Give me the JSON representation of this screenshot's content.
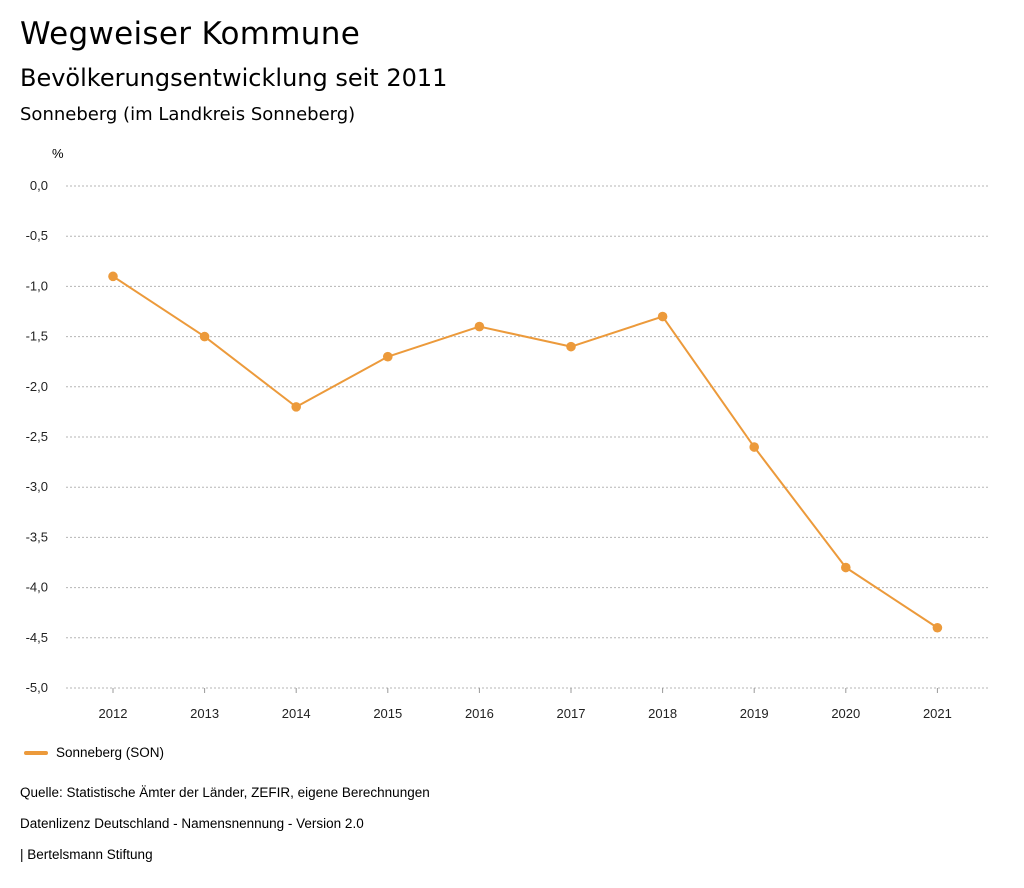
{
  "header": {
    "title": "Wegweiser Kommune",
    "subtitle": "Bevölkerungsentwicklung seit 2011",
    "region": "Sonneberg (im Landkreis Sonneberg)"
  },
  "chart_data": {
    "type": "line",
    "unit_label": "%",
    "x": [
      "2012",
      "2013",
      "2014",
      "2015",
      "2016",
      "2017",
      "2018",
      "2019",
      "2020",
      "2021"
    ],
    "series": [
      {
        "name": "Sonneberg (SON)",
        "color": "#EC9A3B",
        "values": [
          -0.9,
          -1.5,
          -2.2,
          -1.7,
          -1.4,
          -1.6,
          -1.3,
          -2.6,
          -3.8,
          -4.4
        ]
      }
    ],
    "ylim": [
      -5.0,
      0.0
    ],
    "yticks": [
      "0,0",
      "-0,5",
      "-1,0",
      "-1,5",
      "-2,0",
      "-2,5",
      "-3,0",
      "-3,5",
      "-4,0",
      "-4,5",
      "-5,0"
    ],
    "grid": true,
    "legend_position": "bottom-left"
  },
  "footer": {
    "source": "Quelle: Statistische Ämter der Länder, ZEFIR, eigene Berechnungen",
    "license": "Datenlizenz Deutschland - Namensnennung - Version 2.0",
    "publisher": "| Bertelsmann Stiftung"
  }
}
